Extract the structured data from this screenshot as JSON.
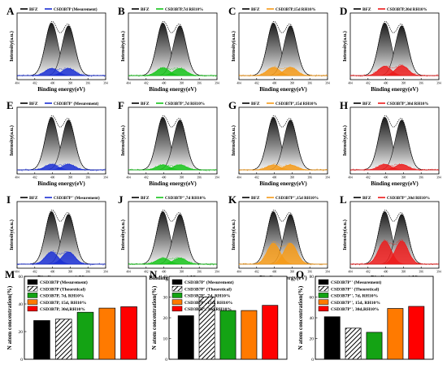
{
  "chart_data": [
    {
      "type": "area",
      "panel_letter": "A",
      "xlabel": "Binding energy(eV)",
      "ylabel": "Intensity(a.u.)",
      "legend": [
        "BFZ",
        "CSD3B7P (Mesurement)"
      ],
      "sample_color": "#1a2fd4",
      "x_ticks": [
        "404",
        "402",
        "400",
        "398",
        "396",
        "394"
      ],
      "reference_peaks": [
        {
          "center": 400.1,
          "height": 0.95
        },
        {
          "center": 398.2,
          "height": 0.9
        }
      ],
      "sample_peaks": [
        {
          "center": 400.1,
          "height": 0.13
        },
        {
          "center": 398.2,
          "height": 0.13
        }
      ]
    },
    {
      "type": "area",
      "panel_letter": "B",
      "xlabel": "Binding energy(eV)",
      "ylabel": "Intensity(a.u.)",
      "legend": [
        "BFZ",
        "CSD3B7P,7d RH10%"
      ],
      "sample_color": "#16c41a",
      "x_ticks": [
        "404",
        "402",
        "400",
        "398",
        "396",
        "394"
      ],
      "reference_peaks": [
        {
          "center": 400.1,
          "height": 0.95
        },
        {
          "center": 398.2,
          "height": 0.9
        }
      ],
      "sample_peaks": [
        {
          "center": 400.1,
          "height": 0.14
        },
        {
          "center": 398.2,
          "height": 0.13
        }
      ]
    },
    {
      "type": "area",
      "panel_letter": "C",
      "xlabel": "Binding energy(eV)",
      "ylabel": "Intensity(a.u.)",
      "legend": [
        "BFZ",
        "CSD3B7P,15d RH10%"
      ],
      "sample_color": "#f59a18",
      "x_ticks": [
        "404",
        "402",
        "400",
        "398",
        "396",
        "394"
      ],
      "reference_peaks": [
        {
          "center": 400.1,
          "height": 0.95
        },
        {
          "center": 398.2,
          "height": 0.9
        }
      ],
      "sample_peaks": [
        {
          "center": 400.1,
          "height": 0.15
        },
        {
          "center": 398.2,
          "height": 0.15
        }
      ]
    },
    {
      "type": "area",
      "panel_letter": "D",
      "xlabel": "Binding energy(eV)",
      "ylabel": "Intensity(a.u.)",
      "legend": [
        "BFZ",
        "CSD3B7P,30d RH10%"
      ],
      "sample_color": "#ec1b1b",
      "x_ticks": [
        "404",
        "402",
        "400",
        "398",
        "396",
        "394"
      ],
      "reference_peaks": [
        {
          "center": 400.1,
          "height": 0.95
        },
        {
          "center": 398.2,
          "height": 0.9
        }
      ],
      "sample_peaks": [
        {
          "center": 400.1,
          "height": 0.17
        },
        {
          "center": 398.2,
          "height": 0.18
        }
      ]
    },
    {
      "type": "area",
      "panel_letter": "E",
      "xlabel": "Binding energy(eV)",
      "ylabel": "Intensity(a.u.)",
      "legend": [
        "BFZ",
        "CSD3B7P' (Mesurement)"
      ],
      "sample_color": "#1a2fd4",
      "x_ticks": [
        "404",
        "402",
        "400",
        "398",
        "396",
        "394"
      ],
      "reference_peaks": [
        {
          "center": 400.1,
          "height": 0.95
        },
        {
          "center": 398.2,
          "height": 0.9
        }
      ],
      "sample_peaks": [
        {
          "center": 400.1,
          "height": 0.1
        },
        {
          "center": 398.2,
          "height": 0.1
        }
      ]
    },
    {
      "type": "area",
      "panel_letter": "F",
      "xlabel": "Binding energy(eV)",
      "ylabel": "Intensity(a.u.)",
      "legend": [
        "BFZ",
        "CSD3B7P',7d RH10%"
      ],
      "sample_color": "#16c41a",
      "x_ticks": [
        "404",
        "402",
        "400",
        "398",
        "396",
        "394"
      ],
      "reference_peaks": [
        {
          "center": 400.1,
          "height": 0.95
        },
        {
          "center": 398.2,
          "height": 0.9
        }
      ],
      "sample_peaks": [
        {
          "center": 400.1,
          "height": 0.09
        },
        {
          "center": 398.2,
          "height": 0.09
        }
      ]
    },
    {
      "type": "area",
      "panel_letter": "G",
      "xlabel": "Binding energy(eV)",
      "ylabel": "Intensity(a.u.)",
      "legend": [
        "BFZ",
        "CSD3B7P',15d RH10%"
      ],
      "sample_color": "#f59a18",
      "x_ticks": [
        "404",
        "402",
        "400",
        "398",
        "396",
        "394"
      ],
      "reference_peaks": [
        {
          "center": 400.1,
          "height": 0.95
        },
        {
          "center": 398.2,
          "height": 0.9
        }
      ],
      "sample_peaks": [
        {
          "center": 400.1,
          "height": 0.09
        },
        {
          "center": 398.2,
          "height": 0.09
        }
      ]
    },
    {
      "type": "area",
      "panel_letter": "H",
      "xlabel": "Binding energy(eV)",
      "ylabel": "Intensity(a.u.)",
      "legend": [
        "BFZ",
        "CSD3B7P',30d RH10%"
      ],
      "sample_color": "#ec1b1b",
      "x_ticks": [
        "404",
        "402",
        "400",
        "398",
        "396",
        "394"
      ],
      "reference_peaks": [
        {
          "center": 400.1,
          "height": 0.95
        },
        {
          "center": 398.2,
          "height": 0.9
        }
      ],
      "sample_peaks": [
        {
          "center": 400.1,
          "height": 0.1
        },
        {
          "center": 398.2,
          "height": 0.1
        }
      ]
    },
    {
      "type": "area",
      "panel_letter": "I",
      "xlabel": "Binding energy(eV)",
      "ylabel": "Intensity(a.u.)",
      "legend": [
        "BFZ",
        "CSD3B7P'' (Mesurement)"
      ],
      "sample_color": "#1a2fd4",
      "x_ticks": [
        "404",
        "402",
        "400",
        "398",
        "396",
        "394"
      ],
      "reference_peaks": [
        {
          "center": 400.1,
          "height": 0.95
        },
        {
          "center": 398.2,
          "height": 0.9
        }
      ],
      "sample_peaks": [
        {
          "center": 400.1,
          "height": 0.22
        },
        {
          "center": 398.2,
          "height": 0.22
        }
      ]
    },
    {
      "type": "area",
      "panel_letter": "J",
      "xlabel": "Binding energy(eV)",
      "ylabel": "Intensity(a.u.)",
      "legend": [
        "BFZ",
        "CSD3B7P'',7d RH10%"
      ],
      "sample_color": "#16c41a",
      "x_ticks": [
        "404",
        "402",
        "400",
        "398",
        "396",
        "394"
      ],
      "reference_peaks": [
        {
          "center": 400.1,
          "height": 0.95
        },
        {
          "center": 398.2,
          "height": 0.9
        }
      ],
      "sample_peaks": [
        {
          "center": 400.1,
          "height": 0.11
        },
        {
          "center": 398.2,
          "height": 0.11
        }
      ]
    },
    {
      "type": "area",
      "panel_letter": "K",
      "xlabel": "Binding energy(eV)",
      "ylabel": "Intensity(a.u.)",
      "legend": [
        "BFZ",
        "CSD3B7P'',15d RH10%"
      ],
      "sample_color": "#f59a18",
      "x_ticks": [
        "404",
        "402",
        "400",
        "398",
        "396",
        "394"
      ],
      "reference_peaks": [
        {
          "center": 400.1,
          "height": 0.95
        },
        {
          "center": 398.2,
          "height": 0.9
        }
      ],
      "sample_peaks": [
        {
          "center": 400.1,
          "height": 0.38
        },
        {
          "center": 398.2,
          "height": 0.38
        }
      ]
    },
    {
      "type": "area",
      "panel_letter": "L",
      "xlabel": "Binding energy(eV)",
      "ylabel": "Intensity(a.u.)",
      "legend": [
        "BFZ",
        "CSD3B7P'',30d RH10%"
      ],
      "sample_color": "#ec1b1b",
      "x_ticks": [
        "404",
        "402",
        "400",
        "398",
        "396",
        "394"
      ],
      "reference_peaks": [
        {
          "center": 400.1,
          "height": 0.95
        },
        {
          "center": 398.2,
          "height": 0.9
        }
      ],
      "sample_peaks": [
        {
          "center": 400.1,
          "height": 0.42
        },
        {
          "center": 398.2,
          "height": 0.42
        }
      ]
    },
    {
      "type": "bar",
      "panel_letter": "M",
      "ylabel": "N atom concentration(%)",
      "ylim": [
        0,
        60
      ],
      "yticks": [
        "0",
        "20",
        "40",
        "60"
      ],
      "series": [
        {
          "name": "CSD3B7P (Mesurement)",
          "value": 28,
          "color": "#000000",
          "pattern": "solid"
        },
        {
          "name": "CSD3B7P (Theoretical)",
          "value": 29,
          "color": "#000000",
          "pattern": "hatch"
        },
        {
          "name": "CSD3B7P, 7d, RH10%",
          "value": 34,
          "color": "#14a314",
          "pattern": "solid"
        },
        {
          "name": "CSD3B7P, 15d, RH10%",
          "value": 37,
          "color": "#ff7a00",
          "pattern": "solid"
        },
        {
          "name": "CSD3B7P, 30d,RH10%",
          "value": 38,
          "color": "#ff0000",
          "pattern": "solid"
        }
      ]
    },
    {
      "type": "bar",
      "panel_letter": "N",
      "ylabel": "N atom concentration(%)",
      "ylim": [
        0,
        40
      ],
      "yticks": [
        "0",
        "10",
        "20",
        "30",
        "40"
      ],
      "series": [
        {
          "name": "CSD3B7P' (Mesurement)",
          "value": 21,
          "color": "#000000",
          "pattern": "solid"
        },
        {
          "name": "CSD3B7P' (Theoretical)",
          "value": 30,
          "color": "#000000",
          "pattern": "hatch"
        },
        {
          "name": "CSD3B7P', 7d, RH10%",
          "value": 23.5,
          "color": "#14a314",
          "pattern": "solid"
        },
        {
          "name": "CSD3B7P', 15d, RH10%",
          "value": 23.5,
          "color": "#ff7a00",
          "pattern": "solid"
        },
        {
          "name": "CSD3B7P', 30d,RH10%",
          "value": 26,
          "color": "#ff0000",
          "pattern": "solid"
        }
      ]
    },
    {
      "type": "bar",
      "panel_letter": "O",
      "ylabel": "N atom concentration(%)",
      "ylim": [
        0,
        80
      ],
      "yticks": [
        "0",
        "20",
        "40",
        "60",
        "80"
      ],
      "series": [
        {
          "name": "CSD3B7P'' (Mesurement)",
          "value": 41,
          "color": "#000000",
          "pattern": "solid"
        },
        {
          "name": "CSD3B7P'' (Theoretical)",
          "value": 30,
          "color": "#000000",
          "pattern": "hatch"
        },
        {
          "name": "CSD3B7P'', 7d, RH10%",
          "value": 26,
          "color": "#14a314",
          "pattern": "solid"
        },
        {
          "name": "CSD3B7P'', 15d, RH10%",
          "value": 49,
          "color": "#ff7a00",
          "pattern": "solid"
        },
        {
          "name": "CSD3B7P'', 30d,RH10%",
          "value": 51,
          "color": "#ff0000",
          "pattern": "solid"
        }
      ]
    }
  ]
}
